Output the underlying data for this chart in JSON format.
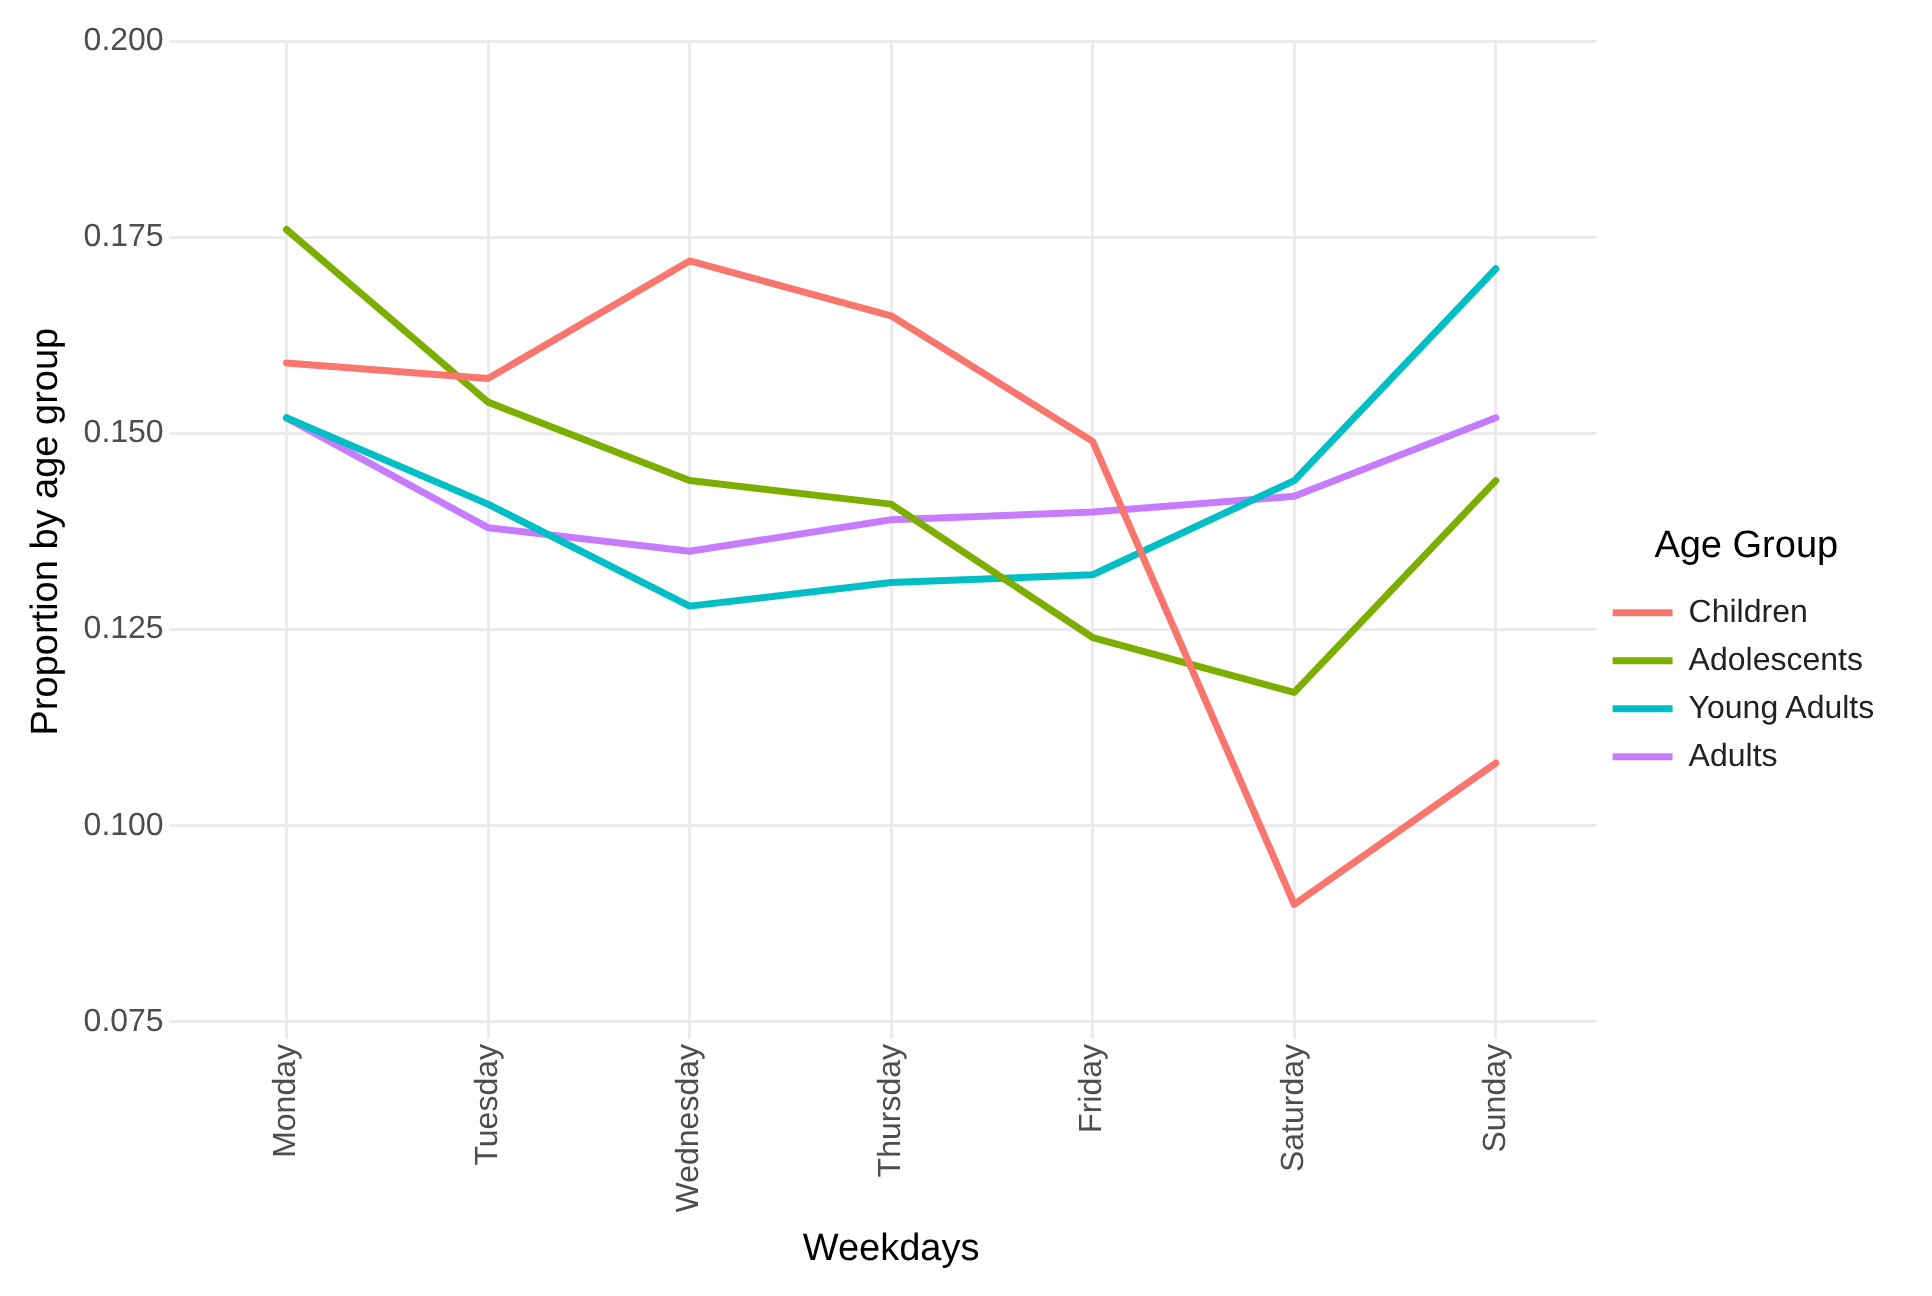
{
  "chart_data": {
    "type": "line",
    "xlabel": "Weekdays",
    "ylabel": "Proportion by age group",
    "legend_title": "Age Group",
    "legend": "right",
    "grid": true,
    "marker": "none",
    "line_style": "solid",
    "categories": [
      "Monday",
      "Tuesday",
      "Wednesday",
      "Thursday",
      "Friday",
      "Saturday",
      "Sunday"
    ],
    "ylim": [
      0.075,
      0.2
    ],
    "yticks": [
      {
        "value": 0.075,
        "label": "0.075"
      },
      {
        "value": 0.1,
        "label": "0.100"
      },
      {
        "value": 0.125,
        "label": "0.125"
      },
      {
        "value": 0.15,
        "label": "0.150"
      },
      {
        "value": 0.175,
        "label": "0.175"
      },
      {
        "value": 0.2,
        "label": "0.200"
      }
    ],
    "series": [
      {
        "name": "Children",
        "color": "#f8766d",
        "values": [
          0.159,
          0.157,
          0.172,
          0.165,
          0.149,
          0.09,
          0.108
        ]
      },
      {
        "name": "Adolescents",
        "color": "#7cae00",
        "values": [
          0.176,
          0.154,
          0.144,
          0.141,
          0.124,
          0.117,
          0.144
        ]
      },
      {
        "name": "Young Adults",
        "color": "#00bfc4",
        "values": [
          0.152,
          0.141,
          0.128,
          0.131,
          0.132,
          0.144,
          0.171
        ]
      },
      {
        "name": "Adults",
        "color": "#c77cff",
        "values": [
          0.152,
          0.138,
          0.135,
          0.139,
          0.14,
          0.142,
          0.152
        ]
      }
    ]
  }
}
